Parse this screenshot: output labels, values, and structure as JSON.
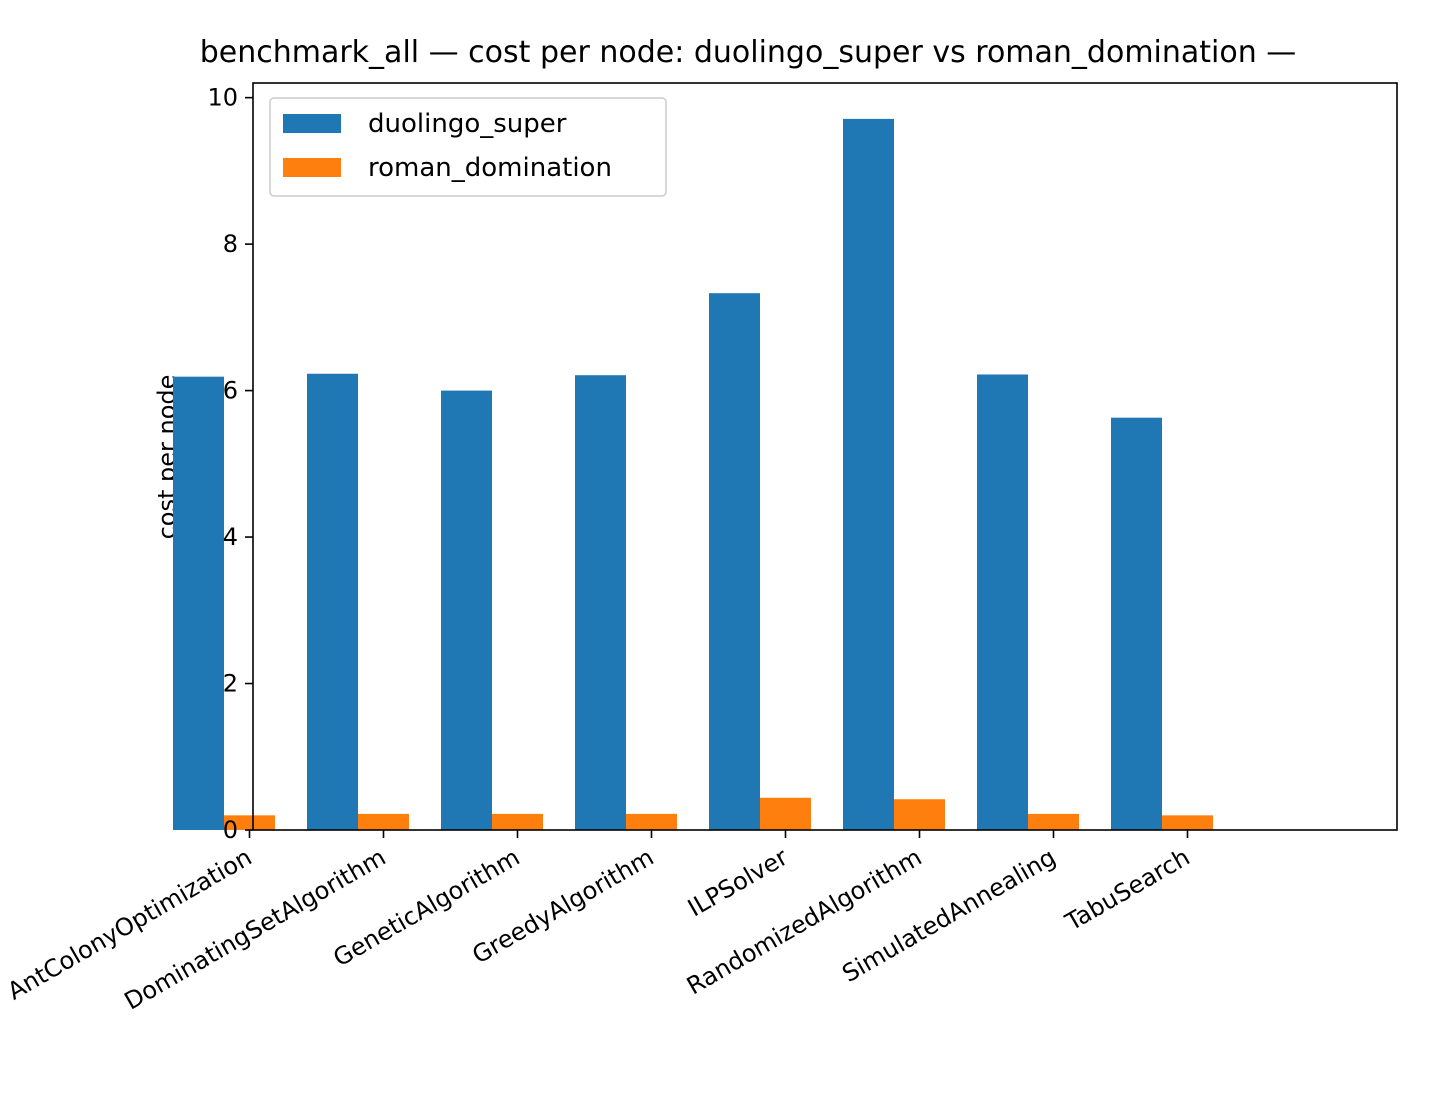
{
  "chart_data": {
    "type": "bar",
    "title": "benchmark_all — cost per node: duolingo_super vs roman_domination —",
    "xlabel": "",
    "ylabel": "cost per node",
    "ylim": [
      0,
      10.2
    ],
    "yticks": [
      0,
      2,
      4,
      6,
      8,
      10
    ],
    "categories": [
      "AntColonyOptimization",
      "DominatingSetAlgorithm",
      "GeneticAlgorithm",
      "GreedyAlgorithm",
      "ILPSolver",
      "RandomizedAlgorithm",
      "SimulatedAnnealing",
      "TabuSearch"
    ],
    "series": [
      {
        "name": "duolingo_super",
        "color": "#1f77b4",
        "values": [
          6.19,
          6.23,
          6.0,
          6.21,
          7.33,
          9.71,
          6.22,
          5.63
        ]
      },
      {
        "name": "roman_domination",
        "color": "#ff7f0e",
        "values": [
          0.2,
          0.22,
          0.22,
          0.22,
          0.44,
          0.42,
          0.22,
          0.2
        ]
      }
    ],
    "legend": "top-left",
    "grid": false
  }
}
